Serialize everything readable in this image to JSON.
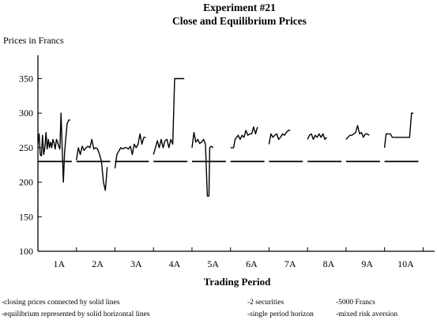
{
  "chart_data": {
    "type": "line",
    "title": "Experiment #21",
    "subtitle": "Close and Equilibrium Prices",
    "ylabel": "Prices in Francs",
    "xlabel": "Trading Period",
    "ylim": [
      100,
      370
    ],
    "yticks": [
      100,
      150,
      200,
      250,
      300,
      350
    ],
    "grid": false,
    "x_range": [
      0,
      10.3
    ],
    "categories": [
      "1A",
      "2A",
      "3A",
      "4A",
      "5A",
      "6A",
      "7A",
      "8A",
      "9A",
      "10A"
    ],
    "category_positions": [
      0.55,
      1.55,
      2.55,
      3.55,
      4.55,
      5.55,
      6.55,
      7.55,
      8.55,
      9.55
    ],
    "series": [
      {
        "kind": "closing",
        "segments": [
          [
            [
              0.0,
              256
            ],
            [
              0.03,
              270
            ],
            [
              0.06,
              240
            ],
            [
              0.09,
              238
            ],
            [
              0.12,
              268
            ],
            [
              0.15,
              240
            ],
            [
              0.18,
              250
            ],
            [
              0.21,
              272
            ],
            [
              0.24,
              248
            ],
            [
              0.27,
              262
            ],
            [
              0.3,
              250
            ],
            [
              0.33,
              258
            ],
            [
              0.36,
              250
            ],
            [
              0.39,
              262
            ],
            [
              0.42,
              256
            ],
            [
              0.45,
              248
            ],
            [
              0.48,
              262
            ],
            [
              0.51,
              258
            ],
            [
              0.54,
              252
            ],
            [
              0.57,
              248
            ],
            [
              0.6,
              300
            ],
            [
              0.63,
              250
            ],
            [
              0.66,
              200
            ],
            [
              0.69,
              240
            ],
            [
              0.72,
              262
            ],
            [
              0.76,
              285
            ],
            [
              0.8,
              290
            ],
            [
              0.84,
              290
            ]
          ],
          [
            [
              1.0,
              232
            ],
            [
              1.05,
              250
            ],
            [
              1.1,
              240
            ],
            [
              1.15,
              252
            ],
            [
              1.2,
              246
            ],
            [
              1.25,
              250
            ],
            [
              1.3,
              252
            ],
            [
              1.35,
              250
            ],
            [
              1.4,
              262
            ],
            [
              1.45,
              248
            ],
            [
              1.5,
              250
            ],
            [
              1.55,
              248
            ],
            [
              1.6,
              240
            ],
            [
              1.65,
              230
            ],
            [
              1.7,
              200
            ],
            [
              1.75,
              188
            ],
            [
              1.8,
              222
            ]
          ],
          [
            [
              2.0,
              220
            ],
            [
              2.05,
              240
            ],
            [
              2.1,
              245
            ],
            [
              2.15,
              250
            ],
            [
              2.2,
              248
            ],
            [
              2.25,
              250
            ],
            [
              2.3,
              250
            ],
            [
              2.35,
              248
            ],
            [
              2.4,
              252
            ],
            [
              2.45,
              240
            ],
            [
              2.5,
              255
            ],
            [
              2.55,
              250
            ],
            [
              2.6,
              255
            ],
            [
              2.65,
              270
            ],
            [
              2.7,
              255
            ],
            [
              2.75,
              265
            ],
            [
              2.8,
              265
            ]
          ],
          [
            [
              3.0,
              240
            ],
            [
              3.05,
              250
            ],
            [
              3.1,
              260
            ],
            [
              3.15,
              250
            ],
            [
              3.2,
              262
            ],
            [
              3.25,
              250
            ],
            [
              3.3,
              260
            ],
            [
              3.35,
              262
            ],
            [
              3.4,
              250
            ],
            [
              3.45,
              262
            ],
            [
              3.5,
              255
            ],
            [
              3.55,
              350
            ],
            [
              3.62,
              350
            ],
            [
              3.7,
              350
            ],
            [
              3.8,
              350
            ]
          ],
          [
            [
              4.0,
              250
            ],
            [
              4.05,
              272
            ],
            [
              4.1,
              258
            ],
            [
              4.15,
              262
            ],
            [
              4.2,
              256
            ],
            [
              4.25,
              258
            ],
            [
              4.3,
              262
            ],
            [
              4.35,
              255
            ],
            [
              4.4,
              180
            ],
            [
              4.44,
              180
            ],
            [
              4.46,
              250
            ],
            [
              4.5,
              252
            ],
            [
              4.55,
              250
            ]
          ],
          [
            [
              5.0,
              250
            ],
            [
              5.08,
              250
            ],
            [
              5.12,
              262
            ],
            [
              5.2,
              268
            ],
            [
              5.25,
              262
            ],
            [
              5.3,
              268
            ],
            [
              5.35,
              265
            ],
            [
              5.4,
              275
            ],
            [
              5.45,
              268
            ],
            [
              5.5,
              270
            ],
            [
              5.55,
              270
            ],
            [
              5.6,
              280
            ],
            [
              5.65,
              270
            ],
            [
              5.7,
              280
            ]
          ],
          [
            [
              6.0,
              255
            ],
            [
              6.05,
              270
            ],
            [
              6.1,
              265
            ],
            [
              6.15,
              268
            ],
            [
              6.2,
              270
            ],
            [
              6.25,
              262
            ],
            [
              6.3,
              265
            ],
            [
              6.35,
              270
            ],
            [
              6.4,
              268
            ],
            [
              6.45,
              272
            ],
            [
              6.5,
              275
            ],
            [
              6.55,
              275
            ]
          ],
          [
            [
              7.0,
              262
            ],
            [
              7.05,
              268
            ],
            [
              7.1,
              270
            ],
            [
              7.15,
              262
            ],
            [
              7.2,
              268
            ],
            [
              7.25,
              265
            ],
            [
              7.3,
              270
            ],
            [
              7.35,
              265
            ],
            [
              7.4,
              270
            ],
            [
              7.45,
              262
            ],
            [
              7.5,
              265
            ]
          ],
          [
            [
              8.0,
              262
            ],
            [
              8.05,
              265
            ],
            [
              8.1,
              268
            ],
            [
              8.15,
              268
            ],
            [
              8.2,
              270
            ],
            [
              8.25,
              272
            ],
            [
              8.3,
              282
            ],
            [
              8.35,
              270
            ],
            [
              8.4,
              272
            ],
            [
              8.45,
              265
            ],
            [
              8.5,
              270
            ],
            [
              8.55,
              270
            ],
            [
              8.6,
              268
            ]
          ],
          [
            [
              9.0,
              250
            ],
            [
              9.04,
              270
            ],
            [
              9.1,
              270
            ],
            [
              9.15,
              270
            ],
            [
              9.2,
              265
            ],
            [
              9.3,
              265
            ],
            [
              9.4,
              265
            ],
            [
              9.5,
              265
            ],
            [
              9.6,
              265
            ],
            [
              9.65,
              265
            ],
            [
              9.7,
              300
            ],
            [
              9.75,
              300
            ]
          ]
        ]
      },
      {
        "kind": "equilibrium",
        "segments": [
          [
            [
              0.0,
              230
            ],
            [
              0.88,
              230
            ]
          ],
          [
            [
              1.0,
              230
            ],
            [
              1.88,
              230
            ]
          ],
          [
            [
              2.0,
              230
            ],
            [
              2.88,
              230
            ]
          ],
          [
            [
              3.0,
              230
            ],
            [
              3.88,
              230
            ]
          ],
          [
            [
              4.0,
              230
            ],
            [
              4.88,
              230
            ]
          ],
          [
            [
              5.0,
              230
            ],
            [
              5.88,
              230
            ]
          ],
          [
            [
              6.0,
              230
            ],
            [
              6.88,
              230
            ]
          ],
          [
            [
              7.0,
              230
            ],
            [
              7.88,
              230
            ]
          ],
          [
            [
              8.0,
              230
            ],
            [
              8.88,
              230
            ]
          ],
          [
            [
              9.0,
              230
            ],
            [
              9.88,
              230
            ]
          ]
        ]
      }
    ],
    "notes": [
      "-closing prices connected by solid lines",
      "-equilibrium represented by solid horizontal lines",
      "-2 securities",
      "-5000 Francs",
      "-single period horizon",
      "-mixed risk aversion"
    ]
  }
}
